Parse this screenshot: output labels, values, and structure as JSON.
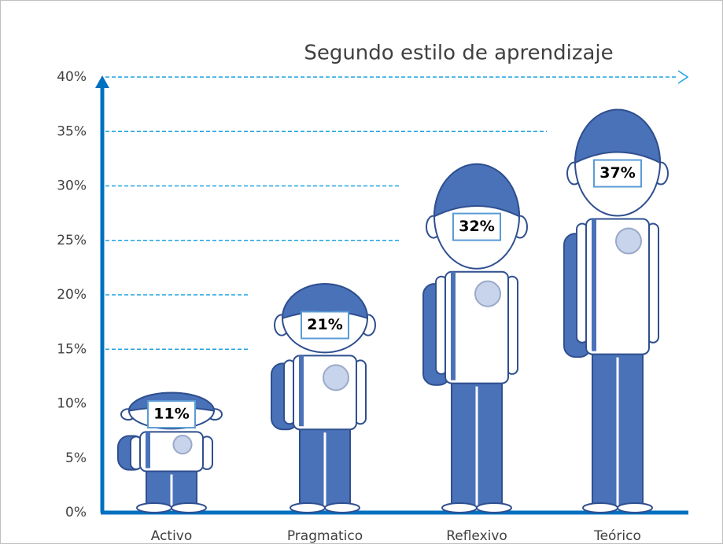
{
  "chart_data": {
    "type": "pictograph",
    "title": "Segundo estilo de aprendizaje",
    "categories": [
      "Activo",
      "Pragmatico",
      "Reflexivo",
      "Teórico"
    ],
    "values": [
      11,
      21,
      32,
      37
    ],
    "value_labels": [
      "11%",
      "21%",
      "32%",
      "37%"
    ],
    "color": "#4a72b8",
    "ylim": [
      0,
      40
    ],
    "yticks": [
      {
        "value": 0,
        "label": "0%"
      },
      {
        "value": 5,
        "label": "5%"
      },
      {
        "value": 10,
        "label": "10%"
      },
      {
        "value": 15,
        "label": "15%"
      },
      {
        "value": 20,
        "label": "20%"
      },
      {
        "value": 25,
        "label": "25%"
      },
      {
        "value": 30,
        "label": "30%"
      },
      {
        "value": 35,
        "label": "35%"
      },
      {
        "value": 40,
        "label": "40%"
      }
    ],
    "grid": true
  }
}
